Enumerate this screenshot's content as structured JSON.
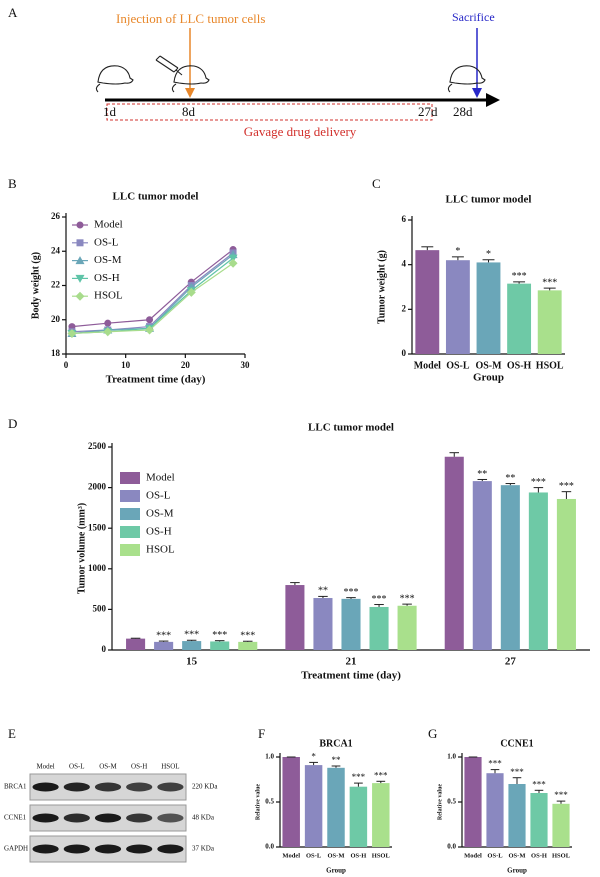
{
  "timeline": {
    "panel": "A",
    "injection_label": "Injection of LLC tumor cells",
    "sacrifice_label": "Sacrifice",
    "days": [
      "1d",
      "8d",
      "27d",
      "28d"
    ],
    "gavage_label": "Gavage drug delivery"
  },
  "blot": {
    "panel": "E",
    "lanes": [
      "Model",
      "OS-L",
      "OS-M",
      "OS-H",
      "HSOL"
    ],
    "rows": [
      {
        "protein": "BRCA1",
        "size": "220 KDa"
      },
      {
        "protein": "CCNE1",
        "size": "48 KDa"
      },
      {
        "protein": "GAPDH",
        "size": "37 KDa"
      }
    ]
  },
  "chart_data": [
    {
      "type": "line",
      "panel": "B",
      "title": "LLC tumor model",
      "xlabel": "Treatment time (day)",
      "ylabel": "Body weight (g)",
      "x": [
        1,
        7,
        14,
        21,
        28
      ],
      "xlim": [
        0,
        30
      ],
      "xticks": [
        0,
        10,
        20,
        30
      ],
      "ylim": [
        18,
        26
      ],
      "yticks": [
        18,
        20,
        22,
        24,
        26
      ],
      "series": [
        {
          "name": "Model",
          "color": "#8e5c99",
          "marker": "circle",
          "values": [
            19.6,
            19.8,
            20.0,
            22.2,
            24.1
          ]
        },
        {
          "name": "OS-L",
          "color": "#8a88c0",
          "marker": "square",
          "values": [
            19.3,
            19.4,
            19.6,
            22.0,
            23.9
          ]
        },
        {
          "name": "OS-M",
          "color": "#6aa6b8",
          "marker": "triangle",
          "values": [
            19.2,
            19.4,
            19.5,
            21.9,
            23.8
          ]
        },
        {
          "name": "OS-H",
          "color": "#5fc4a8",
          "marker": "down-triangle",
          "values": [
            19.2,
            19.3,
            19.5,
            21.7,
            23.6
          ]
        },
        {
          "name": "HSOL",
          "color": "#a8dc8c",
          "marker": "diamond",
          "values": [
            19.2,
            19.3,
            19.4,
            21.6,
            23.3
          ]
        }
      ]
    },
    {
      "type": "bar",
      "panel": "C",
      "title": "LLC tumor model",
      "xlabel": "Group",
      "ylabel": "Tumor weight (g)",
      "categories": [
        "Model",
        "OS-L",
        "OS-M",
        "OS-H",
        "HSOL"
      ],
      "values": [
        4.65,
        4.2,
        4.1,
        3.15,
        2.85
      ],
      "errors": [
        0.15,
        0.15,
        0.12,
        0.08,
        0.1
      ],
      "significance": [
        null,
        "*",
        "*",
        "***",
        "***"
      ],
      "colors": [
        "#8e5c99",
        "#8a88c0",
        "#6aa6b8",
        "#6ec9a6",
        "#a9e08c"
      ],
      "ylim": [
        0,
        6
      ],
      "yticks": [
        0,
        2,
        4,
        6
      ]
    },
    {
      "type": "bar",
      "panel": "D",
      "title": "LLC tumor model",
      "xlabel": "Treatment time (day)",
      "ylabel": "Tumor volume (mm³)",
      "categories": [
        "15",
        "21",
        "27"
      ],
      "ylim": [
        0,
        2500
      ],
      "yticks": [
        0,
        500,
        1000,
        1500,
        2000,
        2500
      ],
      "series": [
        {
          "name": "Model",
          "color": "#8e5c99",
          "values": [
            140,
            800,
            2380
          ],
          "errors": [
            5,
            30,
            50
          ],
          "significance": [
            null,
            null,
            null
          ]
        },
        {
          "name": "OS-L",
          "color": "#8a88c0",
          "values": [
            100,
            640,
            2080
          ],
          "errors": [
            10,
            20,
            20
          ],
          "significance": [
            "***",
            "**",
            "**"
          ]
        },
        {
          "name": "OS-M",
          "color": "#6aa6b8",
          "values": [
            110,
            630,
            2030
          ],
          "errors": [
            10,
            15,
            20
          ],
          "significance": [
            "***",
            "***",
            "**"
          ]
        },
        {
          "name": "OS-H",
          "color": "#6ec9a6",
          "values": [
            105,
            530,
            1940
          ],
          "errors": [
            10,
            30,
            60
          ],
          "significance": [
            "***",
            "***",
            "***"
          ]
        },
        {
          "name": "HSOL",
          "color": "#a9e08c",
          "values": [
            100,
            545,
            1860
          ],
          "errors": [
            8,
            20,
            90
          ],
          "significance": [
            "***",
            "***",
            "***"
          ]
        }
      ]
    },
    {
      "type": "bar",
      "panel": "F",
      "title": "BRCA1",
      "xlabel": "Group",
      "ylabel": "Relative value",
      "categories": [
        "Model",
        "OS-L",
        "OS-M",
        "OS-H",
        "HSOL"
      ],
      "values": [
        1.0,
        0.91,
        0.88,
        0.67,
        0.71
      ],
      "errors": [
        0,
        0.03,
        0.02,
        0.04,
        0.02
      ],
      "significance": [
        null,
        "*",
        "**",
        "***",
        "***"
      ],
      "colors": [
        "#8e5c99",
        "#8a88c0",
        "#6aa6b8",
        "#6ec9a6",
        "#a9e08c"
      ],
      "ylim": [
        0,
        1.0
      ],
      "yticks": [
        {
          "value": 0,
          "label": "0.0"
        },
        0.5,
        {
          "value": 1,
          "label": "1.0"
        }
      ]
    },
    {
      "type": "bar",
      "panel": "G",
      "title": "CCNE1",
      "xlabel": "Group",
      "ylabel": "Relative value",
      "categories": [
        "Model",
        "OS-L",
        "OS-M",
        "OS-H",
        "HSOL"
      ],
      "values": [
        1.0,
        0.82,
        0.7,
        0.6,
        0.48
      ],
      "errors": [
        0,
        0.04,
        0.07,
        0.03,
        0.03
      ],
      "significance": [
        null,
        "***",
        "***",
        "***",
        "***"
      ],
      "colors": [
        "#8e5c99",
        "#8a88c0",
        "#6aa6b8",
        "#6ec9a6",
        "#a9e08c"
      ],
      "ylim": [
        0,
        1.0
      ],
      "yticks": [
        {
          "value": 0,
          "label": "0.0"
        },
        0.5,
        {
          "value": 1,
          "label": "1.0"
        }
      ]
    }
  ]
}
